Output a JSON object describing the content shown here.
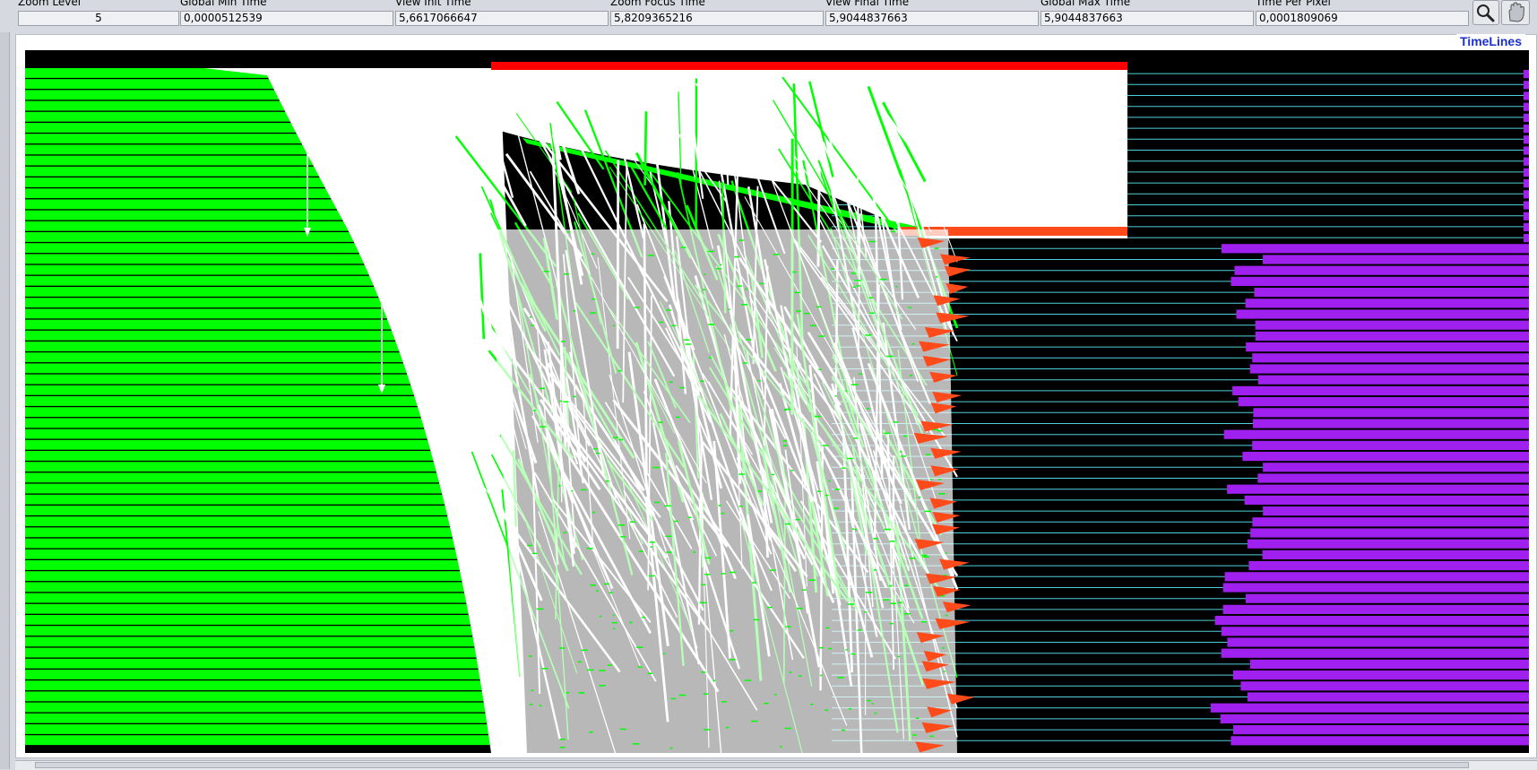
{
  "toolbar": {
    "fields": [
      {
        "label": "Zoom Level",
        "value": "5"
      },
      {
        "label": "Global Min Time",
        "value": "0,0000512539"
      },
      {
        "label": "View  Init Time",
        "value": "5,6617066647"
      },
      {
        "label": "Zoom Focus Time",
        "value": "5,8209365216"
      },
      {
        "label": "View Final Time",
        "value": "5,9044837663"
      },
      {
        "label": "Global Max Time",
        "value": "5,9044837663"
      },
      {
        "label": "Time Per Pixel",
        "value": "0,0001809069"
      }
    ],
    "zoom_tool_icon": "magnifier-icon",
    "pan_tool_icon": "hand-icon"
  },
  "panel": {
    "title": "TimeLines"
  },
  "colors": {
    "background": "#000000",
    "running": "#00ff00",
    "communication": "#ffffff",
    "blocked": "#ff4a1a",
    "sync": "#ff0000",
    "idle_line": "#4fd0d8",
    "other": "#a020f0"
  }
}
